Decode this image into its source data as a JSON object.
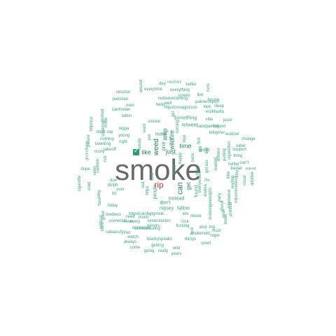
{
  "colors": {
    "background": "#ffffff",
    "primary": "#6a6a6a",
    "secondary": "#c0392b",
    "word": "#3aa587",
    "dark_word": "#1e7f63",
    "emoji": "#2e9e6a"
  },
  "words": [
    {
      "text": "smoke",
      "tier": "primary"
    },
    {
      "text": "rip",
      "tier": "secondary"
    },
    {
      "text": "like",
      "tier": "dark"
    },
    {
      "text": "just",
      "tier": "dark"
    },
    {
      "text": "time",
      "tier": "dark"
    },
    {
      "text": "weed",
      "tier": "dark"
    },
    {
      "text": "can",
      "tier": "dark"
    },
    {
      "text": "wildfire",
      "tier": "dark"
    },
    {
      "text": "one",
      "tier": "word"
    },
    {
      "text": "amp",
      "tier": "dark"
    },
    {
      "text": "…",
      "tier": "dark"
    },
    {
      "text": "get",
      "tier": "dark"
    },
    {
      "text": "make",
      "tier": "word"
    },
    {
      "text": "don't",
      "tier": "word"
    },
    {
      "text": "instead",
      "tier": "word"
    },
    {
      "text": "found",
      "tier": "word"
    },
    {
      "text": "nipsey",
      "tier": "word"
    },
    {
      "text": "fallow",
      "tier": "word"
    },
    {
      "text": "people",
      "tier": "word"
    },
    {
      "text": "retweet",
      "tier": "word"
    },
    {
      "text": "cazegaming",
      "tier": "word"
    },
    {
      "text": "hotterrt",
      "tier": "word"
    },
    {
      "text": "something",
      "tier": "word"
    },
    {
      "text": "vibe",
      "tier": "word"
    },
    {
      "text": "juice",
      "tier": "word"
    },
    {
      "text": "enter",
      "tier": "word"
    },
    {
      "text": "https",
      "tier": "word"
    },
    {
      "text": "httpstcoxagjocxsx",
      "tier": "word"
    },
    {
      "text": "redwavecoming",
      "tier": "word"
    },
    {
      "text": "everytime",
      "tier": "word"
    },
    {
      "text": "everything",
      "tier": "word"
    },
    {
      "text": "session",
      "tier": "word"
    },
    {
      "text": "pakistan",
      "tier": "word"
    },
    {
      "text": "man",
      "tier": "word"
    },
    {
      "text": "hello",
      "tier": "word"
    },
    {
      "text": "cantnever",
      "tier": "word"
    },
    {
      "text": "talkin",
      "tier": "word"
    },
    {
      "text": "smoke",
      "tier": "word"
    },
    {
      "text": "nigga",
      "tier": "word"
    },
    {
      "text": "young",
      "tier": "word"
    },
    {
      "text": "right",
      "tier": "word"
    },
    {
      "text": "nothing",
      "tier": "word"
    },
    {
      "text": "tweeting",
      "tier": "word"
    },
    {
      "text": "takeoff",
      "tier": "word"
    },
    {
      "text": "morty",
      "tier": "word"
    },
    {
      "text": "dope",
      "tier": "word"
    },
    {
      "text": "smoking",
      "tier": "word"
    },
    {
      "text": "drink",
      "tier": "word"
    },
    {
      "text": "say",
      "tier": "word"
    },
    {
      "text": "due",
      "tier": "word"
    },
    {
      "text": "dolph",
      "tier": "word"
    },
    {
      "text": "ever",
      "tier": "word"
    },
    {
      "text": "lol",
      "tier": "word"
    },
    {
      "text": "today",
      "tier": "word"
    },
    {
      "text": "tirediess",
      "tier": "word"
    },
    {
      "text": "need",
      "tier": "word"
    },
    {
      "text": "even",
      "tier": "word"
    },
    {
      "text": "cuteassfyy",
      "tier": "word"
    },
    {
      "text": "let",
      "tier": "word"
    },
    {
      "text": "much",
      "tier": "word"
    },
    {
      "text": "nonsense",
      "tier": "word"
    },
    {
      "text": "httpstcoinbgtgmlnk…",
      "tier": "word"
    },
    {
      "text": "scenedoll",
      "tier": "word"
    },
    {
      "text": "every",
      "tier": "word"
    },
    {
      "text": "xxxtentacion",
      "tier": "word"
    },
    {
      "text": "selfreassuring",
      "tier": "word"
    },
    {
      "text": "minors",
      "tier": "word"
    },
    {
      "text": "watch",
      "tier": "word"
    },
    {
      "text": "blackyspeakz",
      "tier": "word"
    },
    {
      "text": "always",
      "tier": "word"
    },
    {
      "text": "come",
      "tier": "word"
    },
    {
      "text": "getting",
      "tier": "word"
    },
    {
      "text": "going",
      "tier": "word"
    },
    {
      "text": "really",
      "tier": "word"
    },
    {
      "text": "wild",
      "tier": "word"
    },
    {
      "text": "years",
      "tier": "word"
    },
    {
      "text": "smell",
      "tier": "word"
    },
    {
      "text": "things",
      "tier": "word"
    },
    {
      "text": "hope",
      "tier": "word"
    },
    {
      "text": "must",
      "tier": "word"
    },
    {
      "text": "fucking",
      "tier": "word"
    },
    {
      "text": "fuck",
      "tier": "word"
    },
    {
      "text": "chokehold",
      "tier": "word"
    },
    {
      "text": "also",
      "tier": "word"
    },
    {
      "text": "big",
      "tier": "word"
    },
    {
      "text": "movie",
      "tier": "word"
    },
    {
      "text": "rock",
      "tier": "word"
    },
    {
      "text": "lets",
      "tier": "word"
    },
    {
      "text": "smokingweedpits",
      "tier": "word"
    },
    {
      "text": "wanna",
      "tier": "word"
    },
    {
      "text": "ihs",
      "tier": "word"
    },
    {
      "text": "party",
      "tier": "word"
    },
    {
      "text": "everywhere",
      "tier": "word"
    },
    {
      "text": "house",
      "tier": "word"
    },
    {
      "text": "sleep",
      "tier": "word"
    },
    {
      "text": "look",
      "tier": "word"
    },
    {
      "text": "wizkhalifa",
      "tier": "word"
    },
    {
      "text": "dey",
      "tier": "word"
    },
    {
      "text": "carichary",
      "tier": "word"
    },
    {
      "text": "better",
      "tier": "word"
    },
    {
      "text": "runs",
      "tier": "word"
    },
    {
      "text": "screen",
      "tier": "word"
    },
    {
      "text": "live",
      "tier": "word"
    },
    {
      "text": "palmerreport",
      "tier": "word"
    },
    {
      "text": "well",
      "tier": "word"
    },
    {
      "text": "around",
      "tier": "word"
    },
    {
      "text": "lotlighter",
      "tier": "word"
    },
    {
      "text": "outdoor",
      "tier": "word"
    },
    {
      "text": "change",
      "tier": "word"
    },
    {
      "text": "miller",
      "tier": "word"
    },
    {
      "text": "support",
      "tier": "word"
    },
    {
      "text": "thing",
      "tier": "word"
    },
    {
      "text": "twitter",
      "tier": "word"
    },
    {
      "text": "can't",
      "tier": "word"
    },
    {
      "text": "badair",
      "tier": "word"
    },
    {
      "text": "stay",
      "tier": "word"
    },
    {
      "text": "usual",
      "tier": "word"
    },
    {
      "text": "indeed",
      "tier": "word"
    },
    {
      "text": "another",
      "tier": "word"
    },
    {
      "text": "check",
      "tier": "word"
    },
    {
      "text": "political",
      "tier": "word"
    },
    {
      "text": "mikernmeitsxx",
      "tier": "word"
    },
    {
      "text": "waiting",
      "tier": "word"
    },
    {
      "text": "little",
      "tier": "word"
    },
    {
      "text": "yeah",
      "tier": "word"
    },
    {
      "text": "break",
      "tier": "word"
    },
    {
      "text": "tribebeoal",
      "tier": "word"
    },
    {
      "text": "cigarette",
      "tier": "word"
    },
    {
      "text": "please",
      "tier": "word"
    },
    {
      "text": "httpstco",
      "tier": "word"
    },
    {
      "text": "used",
      "tier": "word"
    },
    {
      "text": "seen",
      "tier": "word"
    },
    {
      "text": "long",
      "tier": "word"
    },
    {
      "text": "fake",
      "tier": "word"
    },
    {
      "text": "good",
      "tier": "word"
    },
    {
      "text": "without",
      "tier": "word"
    },
    {
      "text": "blunt",
      "tier": "word"
    },
    {
      "text": "rick",
      "tier": "word"
    },
    {
      "text": "cadeee",
      "tier": "word"
    },
    {
      "text": "gruhuntinine",
      "tier": "word"
    },
    {
      "text": "wished",
      "tier": "word"
    },
    {
      "text": "mode",
      "tier": "word"
    },
    {
      "text": "cigarettes",
      "tier": "word"
    },
    {
      "text": "putting",
      "tier": "word"
    },
    {
      "text": "diffrent",
      "tier": "word"
    },
    {
      "text": "wanted",
      "tier": "word"
    },
    {
      "text": "ass",
      "tier": "word"
    },
    {
      "text": "girl",
      "tier": "word"
    },
    {
      "text": "day",
      "tier": "word"
    },
    {
      "text": "still",
      "tier": "word"
    },
    {
      "text": "now",
      "tier": "word"
    },
    {
      "text": "first",
      "tier": "word"
    },
    {
      "text": "back",
      "tier": "word"
    },
    {
      "text": "love",
      "tier": "word"
    },
    {
      "text": "happy",
      "tier": "word"
    },
    {
      "text": "coming",
      "tier": "word"
    },
    {
      "text": "need",
      "tier": "word"
    },
    {
      "text": "bout",
      "tier": "word"
    },
    {
      "text": "last",
      "tier": "word"
    },
    {
      "text": "got",
      "tier": "word"
    },
    {
      "text": "want",
      "tier": "word"
    },
    {
      "text": "hussle",
      "tier": "word"
    },
    {
      "text": "yes",
      "tier": "word"
    },
    {
      "text": "vs",
      "tier": "word"
    },
    {
      "text": "won",
      "tier": "word"
    }
  ]
}
